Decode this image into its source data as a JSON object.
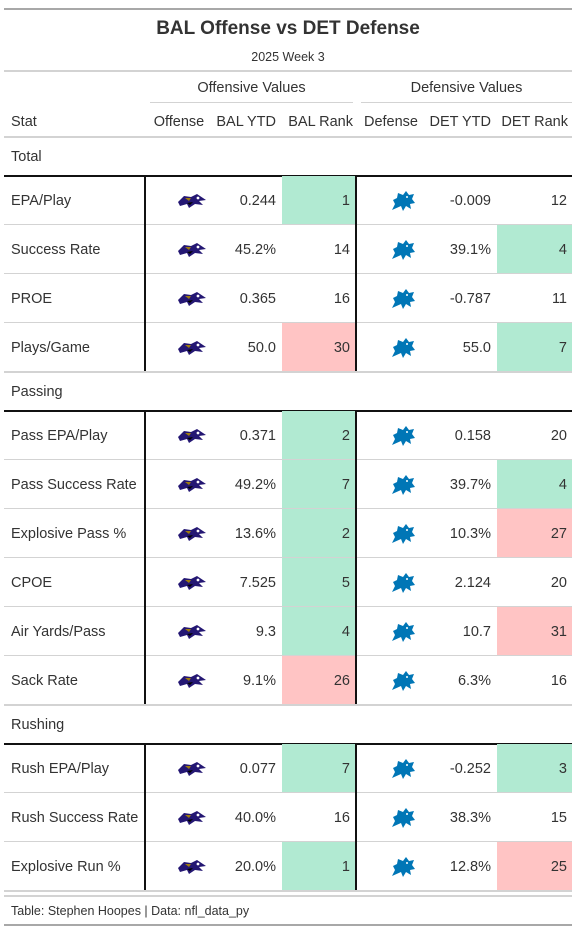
{
  "title": "BAL Offense vs DET Defense",
  "subtitle": "2025 Week 3",
  "spanners": {
    "offense": "Offensive Values",
    "defense": "Defensive Values"
  },
  "columns": {
    "stat": "Stat",
    "offense": "Offense",
    "bal_ytd": "BAL YTD",
    "bal_rank": "BAL Rank",
    "defense": "Defense",
    "det_ytd": "DET YTD",
    "det_rank": "DET Rank"
  },
  "colors": {
    "good": "#b1ead2",
    "bad": "#ffc4c4",
    "ravens_purple": "#241773",
    "lions_blue": "#0076b6"
  },
  "icons": {
    "offense": "ravens-logo-icon",
    "defense": "lions-logo-icon"
  },
  "groups": [
    {
      "label": "Total",
      "rows": [
        {
          "stat": "EPA/Play",
          "bal_ytd": "0.244",
          "bal_rank": "1",
          "bal_rank_color": "good",
          "det_ytd": "-0.009",
          "det_rank": "12",
          "det_rank_color": "none"
        },
        {
          "stat": "Success Rate",
          "bal_ytd": "45.2%",
          "bal_rank": "14",
          "bal_rank_color": "none",
          "det_ytd": "39.1%",
          "det_rank": "4",
          "det_rank_color": "good"
        },
        {
          "stat": "PROE",
          "bal_ytd": "0.365",
          "bal_rank": "16",
          "bal_rank_color": "none",
          "det_ytd": "-0.787",
          "det_rank": "11",
          "det_rank_color": "none"
        },
        {
          "stat": "Plays/Game",
          "bal_ytd": "50.0",
          "bal_rank": "30",
          "bal_rank_color": "bad",
          "det_ytd": "55.0",
          "det_rank": "7",
          "det_rank_color": "good"
        }
      ]
    },
    {
      "label": "Passing",
      "rows": [
        {
          "stat": "Pass EPA/Play",
          "bal_ytd": "0.371",
          "bal_rank": "2",
          "bal_rank_color": "good",
          "det_ytd": "0.158",
          "det_rank": "20",
          "det_rank_color": "none"
        },
        {
          "stat": "Pass Success Rate",
          "bal_ytd": "49.2%",
          "bal_rank": "7",
          "bal_rank_color": "good",
          "det_ytd": "39.7%",
          "det_rank": "4",
          "det_rank_color": "good"
        },
        {
          "stat": "Explosive Pass %",
          "bal_ytd": "13.6%",
          "bal_rank": "2",
          "bal_rank_color": "good",
          "det_ytd": "10.3%",
          "det_rank": "27",
          "det_rank_color": "bad"
        },
        {
          "stat": "CPOE",
          "bal_ytd": "7.525",
          "bal_rank": "5",
          "bal_rank_color": "good",
          "det_ytd": "2.124",
          "det_rank": "20",
          "det_rank_color": "none"
        },
        {
          "stat": "Air Yards/Pass",
          "bal_ytd": "9.3",
          "bal_rank": "4",
          "bal_rank_color": "good",
          "det_ytd": "10.7",
          "det_rank": "31",
          "det_rank_color": "bad"
        },
        {
          "stat": "Sack Rate",
          "bal_ytd": "9.1%",
          "bal_rank": "26",
          "bal_rank_color": "bad",
          "det_ytd": "6.3%",
          "det_rank": "16",
          "det_rank_color": "none"
        }
      ]
    },
    {
      "label": "Rushing",
      "rows": [
        {
          "stat": "Rush EPA/Play",
          "bal_ytd": "0.077",
          "bal_rank": "7",
          "bal_rank_color": "good",
          "det_ytd": "-0.252",
          "det_rank": "3",
          "det_rank_color": "good"
        },
        {
          "stat": "Rush Success Rate",
          "bal_ytd": "40.0%",
          "bal_rank": "16",
          "bal_rank_color": "none",
          "det_ytd": "38.3%",
          "det_rank": "15",
          "det_rank_color": "none"
        },
        {
          "stat": "Explosive Run %",
          "bal_ytd": "20.0%",
          "bal_rank": "1",
          "bal_rank_color": "good",
          "det_ytd": "12.8%",
          "det_rank": "25",
          "det_rank_color": "bad"
        }
      ]
    }
  ],
  "source_note": "Table: Stephen Hoopes | Data: nfl_data_py"
}
